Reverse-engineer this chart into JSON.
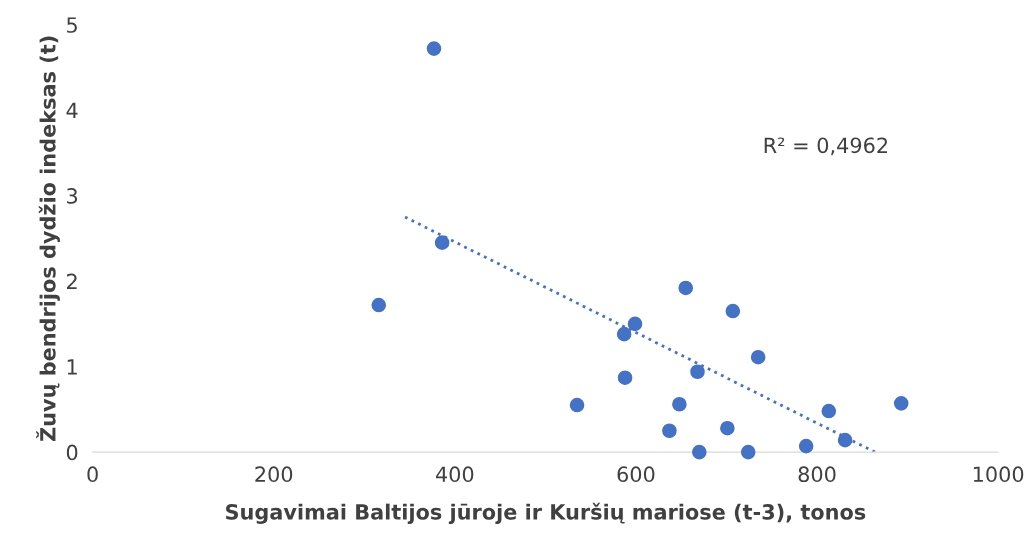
{
  "chart_data": {
    "type": "scatter",
    "xlabel": "Sugavimai Baltijos jūroje ir Kuršių mariose (t-3), tonos",
    "ylabel": "Žuvų bendrijos dydžio indeksas (t)",
    "xlim": [
      0,
      1000
    ],
    "xticks": [
      0,
      200,
      400,
      600,
      800,
      1000
    ],
    "ylim": [
      0,
      5
    ],
    "yticks": [
      0,
      1,
      2,
      3,
      4,
      5
    ],
    "grid": false,
    "series": [
      {
        "color": "#4472c4",
        "marker": "circle",
        "x": [
          377,
          386,
          316,
          535,
          587,
          588,
          599,
          637,
          648,
          655,
          668,
          670,
          701,
          707,
          724,
          735,
          788,
          813,
          831,
          893
        ],
        "values": [
          4.72,
          2.45,
          1.72,
          0.55,
          1.38,
          0.87,
          1.5,
          0.25,
          0.56,
          1.92,
          0.94,
          0.0,
          0.28,
          1.65,
          0.0,
          1.11,
          0.07,
          0.48,
          0.14,
          0.57
        ]
      },
      {
        "type": "line",
        "color": "#4472c4",
        "marker": "none",
        "line_style": "dotted",
        "x": [
          345,
          864
        ],
        "values": [
          2.75,
          0.0
        ]
      }
    ],
    "annotations": [
      "R² = 0,4962"
    ]
  }
}
